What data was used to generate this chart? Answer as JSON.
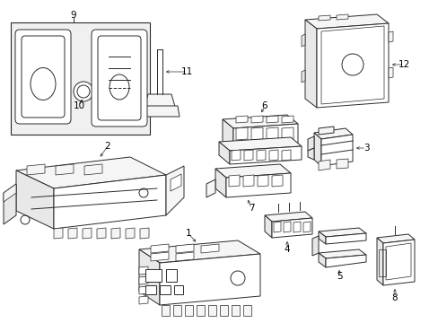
{
  "background_color": "#ffffff",
  "line_color": "#2a2a2a",
  "label_color": "#000000",
  "fig_width": 4.89,
  "fig_height": 3.6,
  "dpi": 100,
  "gray_fill": "#e8e8e8",
  "light_fill": "#f5f5f5"
}
